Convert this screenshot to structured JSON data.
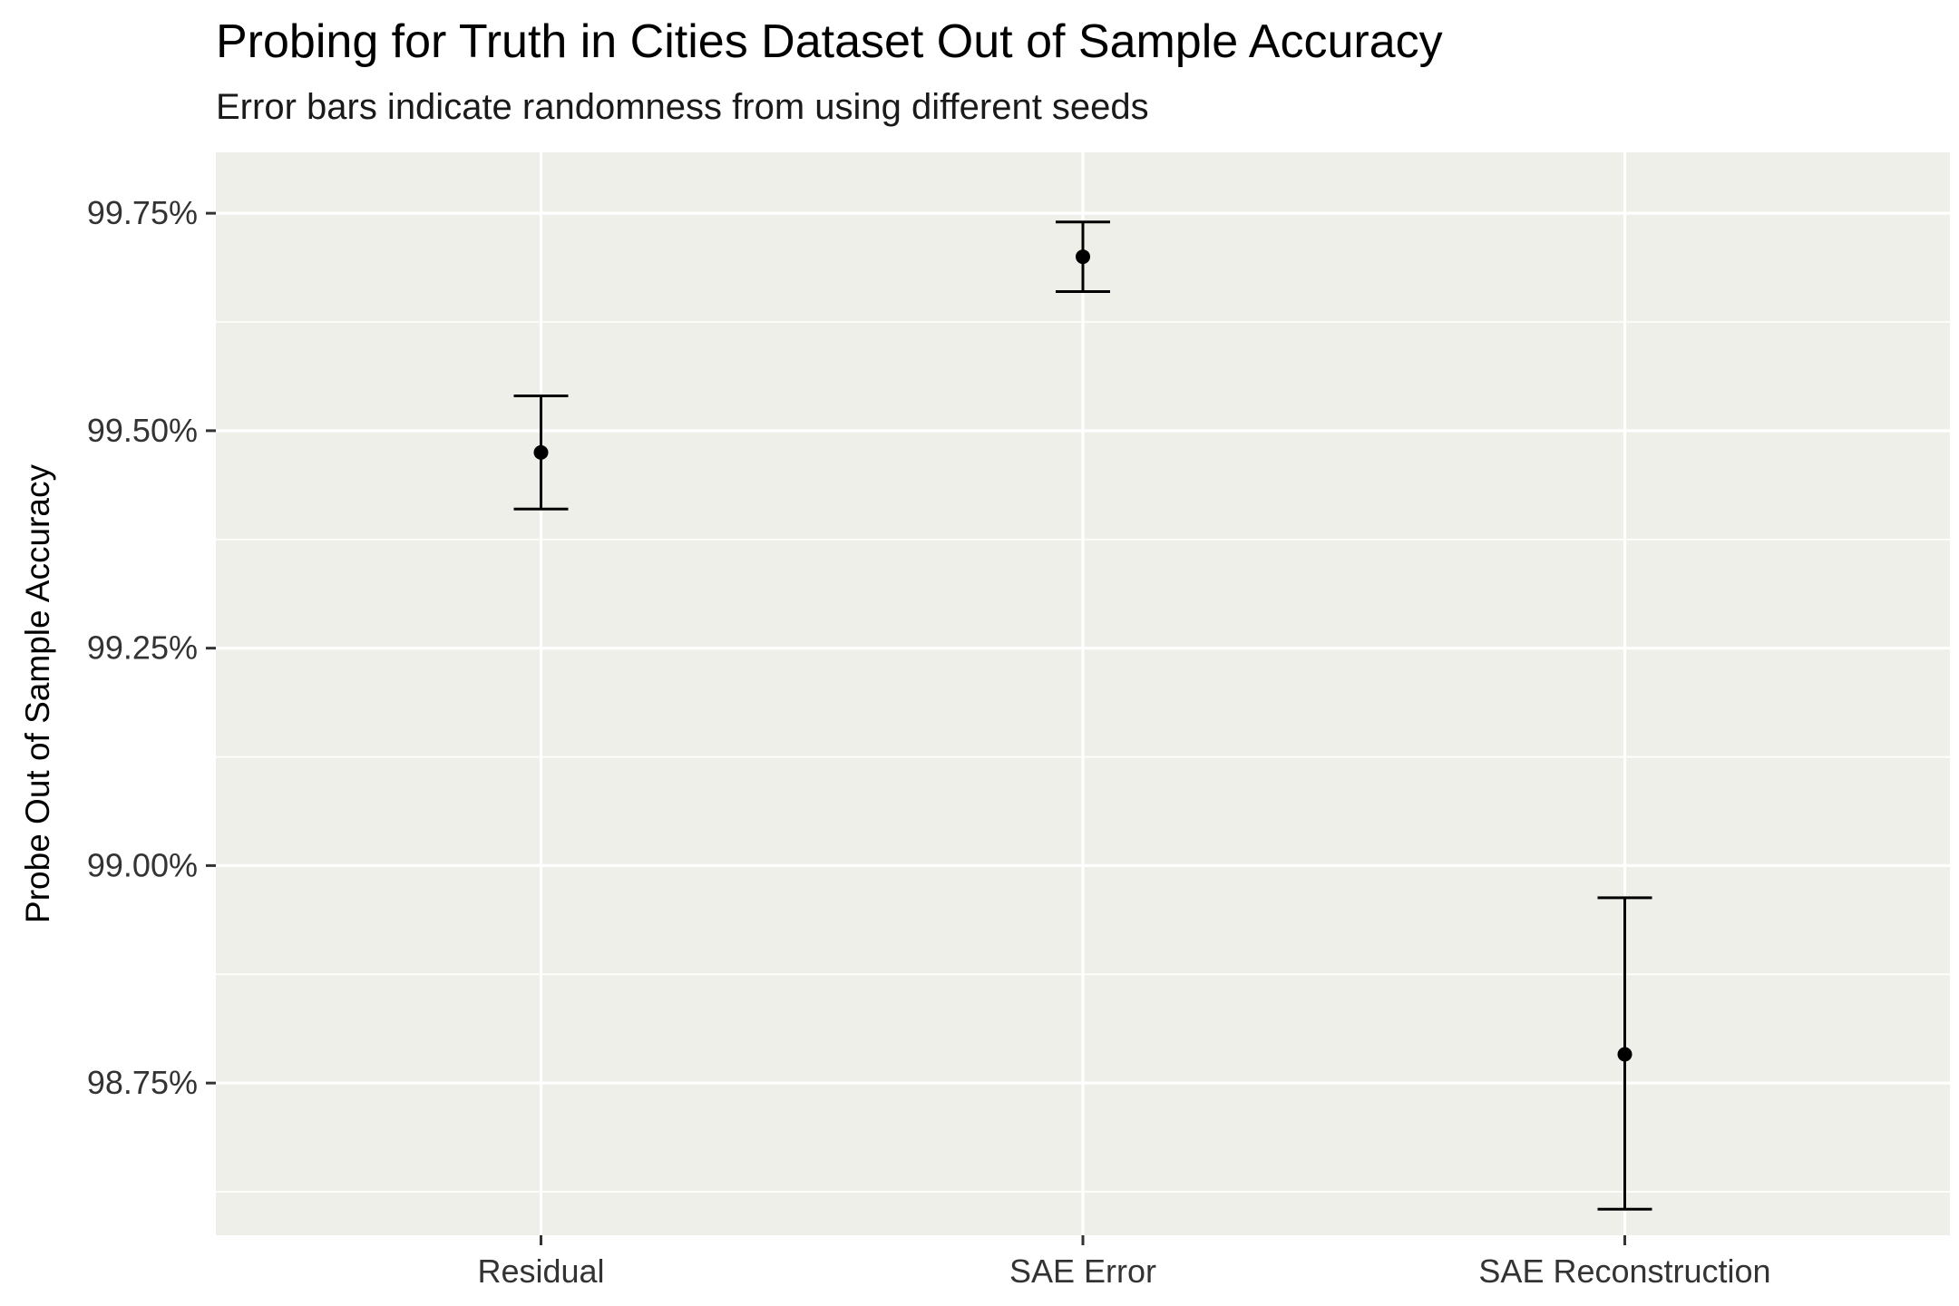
{
  "colors": {
    "panel_background": "#efefe9",
    "gridline": "#ffffff",
    "marks": "#000000",
    "tick": "#333333"
  },
  "chart_data": {
    "type": "scatter",
    "title": "Probing for Truth in Cities Dataset Out of Sample Accuracy",
    "subtitle": "Error bars indicate randomness from using different seeds",
    "xlabel": "",
    "ylabel": "Probe Out of Sample Accuracy",
    "categories": [
      "Residual",
      "SAE Error",
      "SAE Reconstruction"
    ],
    "values": [
      99.475,
      99.7,
      98.783
    ],
    "error_low": [
      99.41,
      99.66,
      98.605
    ],
    "error_high": [
      99.54,
      99.74,
      98.963
    ],
    "ylim": [
      98.575,
      99.82
    ],
    "y_ticks": [
      98.75,
      99.0,
      99.25,
      99.5,
      99.75
    ],
    "y_tick_labels": [
      "98.75%",
      "99.00%",
      "99.25%",
      "99.50%",
      "99.75%"
    ],
    "y_minor_ticks": [
      98.625,
      98.875,
      99.125,
      99.375,
      99.625
    ],
    "grid": true,
    "legend": "none"
  }
}
